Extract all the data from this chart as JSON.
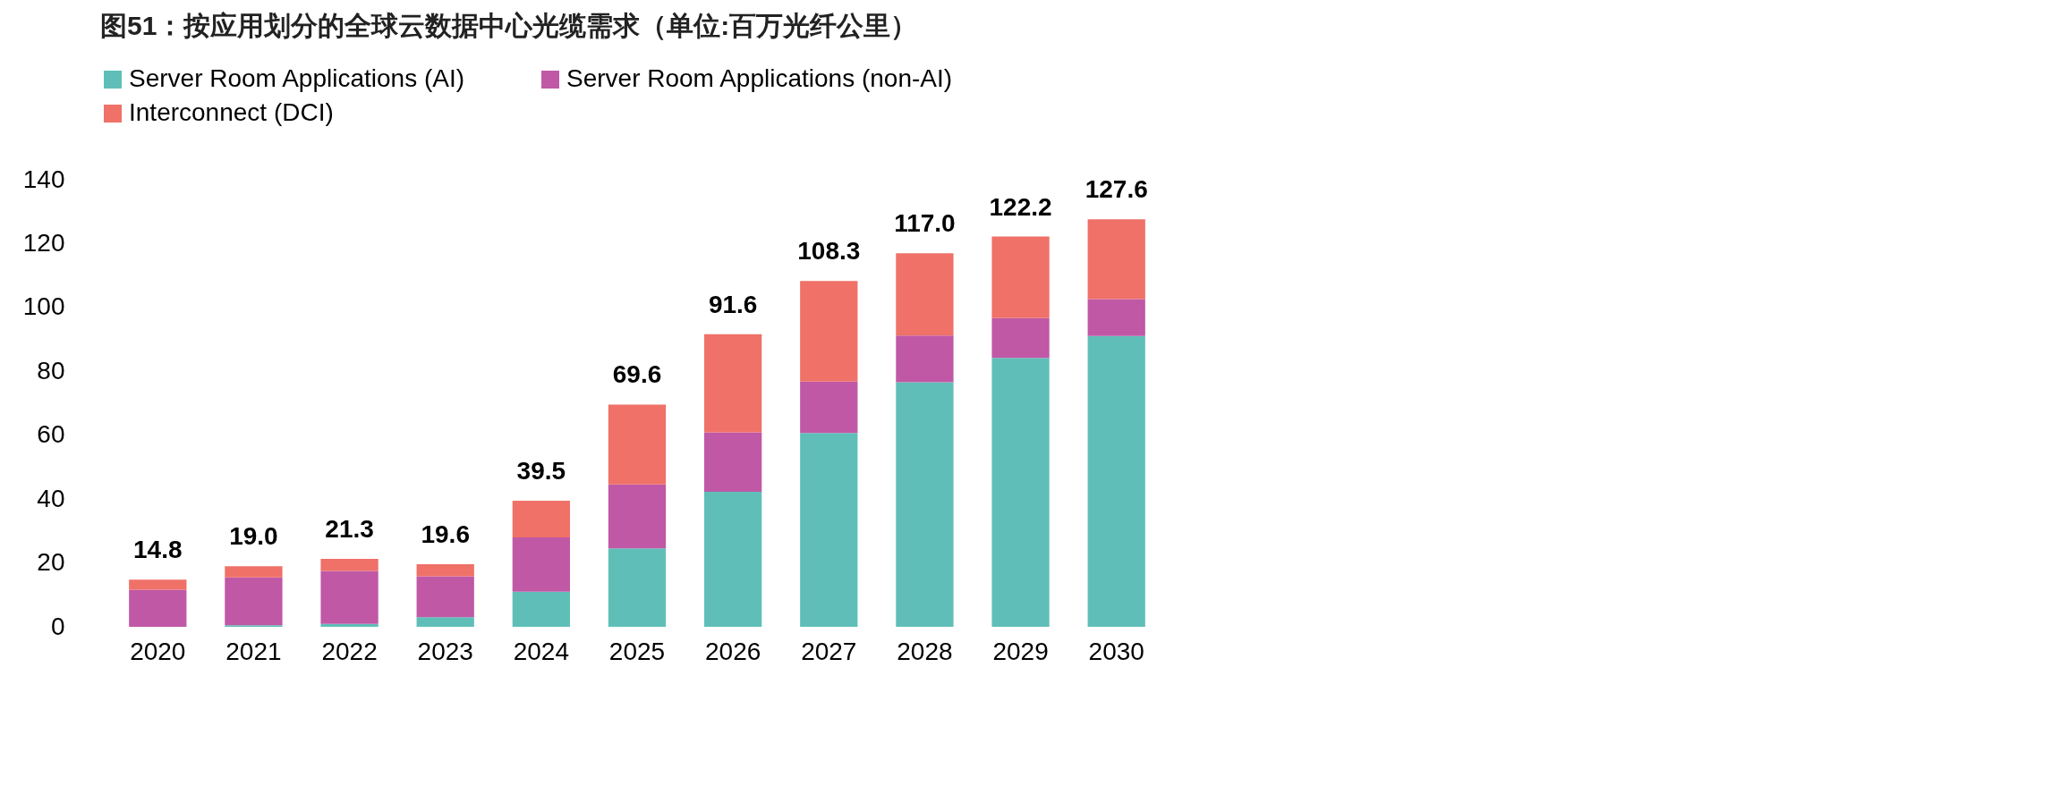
{
  "chart_data": {
    "type": "bar",
    "title": "图51：按应用划分的全球云数据中心光缆需求（单位:百万光纤公里）",
    "stacked": true,
    "legend": "top left",
    "grid": false,
    "categories": [
      "2020",
      "2021",
      "2022",
      "2023",
      "2024",
      "2025",
      "2026",
      "2027",
      "2028",
      "2029",
      "2030"
    ],
    "series": [
      {
        "name": "Server Room Applications (AI)",
        "color": "#5fbfb8",
        "values": [
          0,
          0.5,
          0.9,
          3.0,
          11,
          24.6,
          42.3,
          60.7,
          76.6,
          84.2,
          91.1
        ]
      },
      {
        "name": "Server Room Applications (non-AI)",
        "color": "#c058a6",
        "values": [
          11.6,
          15,
          16.6,
          12.8,
          17,
          20,
          18.6,
          16.1,
          14.6,
          12.5,
          11.5
        ]
      },
      {
        "name": "Interconnect (DCI)",
        "color": "#ef7168",
        "values": [
          3.2,
          3.5,
          3.8,
          3.8,
          11.5,
          25,
          30.7,
          31.5,
          25.8,
          25.5,
          25.0
        ]
      }
    ],
    "totals": [
      "14.8",
      "19.0",
      "21.3",
      "19.6",
      "39.5",
      "69.6",
      "91.6",
      "108.3",
      "117.0",
      "122.2",
      "127.6"
    ],
    "ylim": [
      0,
      140
    ],
    "yticks": [
      0,
      20,
      40,
      60,
      80,
      100,
      120,
      140
    ]
  }
}
